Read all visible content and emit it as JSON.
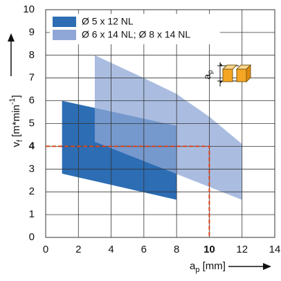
{
  "chart_data": {
    "type": "area",
    "xlabel": {
      "main": "a",
      "sub": "p",
      "rest": " [mm]"
    },
    "ylabel": {
      "main": "v",
      "sub": "f",
      "rest": " [m*min",
      "sup": "-1",
      "end": "]"
    },
    "inset_label": {
      "main": "a",
      "sub": "p"
    },
    "series": [
      {
        "name": "Ø 5 x 12 NL",
        "color": "#2c6db4",
        "x": [
          1,
          8,
          8,
          1
        ],
        "values": [
          6,
          4.9,
          1.65,
          2.8
        ]
      },
      {
        "name": "Ø 6 x 14 NL; Ø 8 x 14 NL",
        "color": "#8ea7d6",
        "x": [
          3,
          6,
          8,
          10,
          12,
          12,
          3
        ],
        "values": [
          8,
          7,
          6.3,
          5.3,
          4.1,
          1.65,
          4.2
        ]
      }
    ],
    "xlim": [
      0,
      14
    ],
    "xticks": [
      0,
      2,
      4,
      6,
      8,
      10,
      12,
      14
    ],
    "ylim": [
      0,
      10
    ],
    "yticks": [
      0,
      1,
      2,
      3,
      4,
      5,
      6,
      7,
      8,
      9,
      10
    ],
    "grid": true,
    "legend": "upper-left",
    "highlight": {
      "x": 10,
      "y": 4,
      "color": "#d9451c"
    }
  }
}
